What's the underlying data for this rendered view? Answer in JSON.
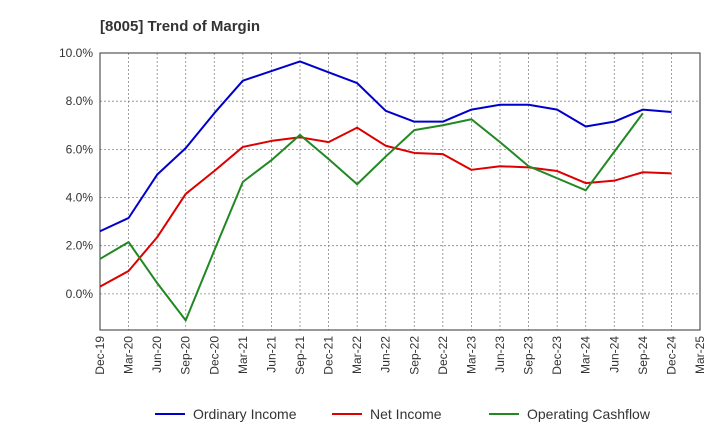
{
  "chart_data": {
    "type": "line",
    "title": "[8005]  Trend of Margin",
    "xlabel": "",
    "ylabel": "",
    "ylim": [
      -1.5,
      10.0
    ],
    "yticks": [
      0,
      2,
      4,
      6,
      8,
      10
    ],
    "ytick_labels": [
      "0.0%",
      "2.0%",
      "4.0%",
      "6.0%",
      "8.0%",
      "10.0%"
    ],
    "categories": [
      "Dec-19",
      "Mar-20",
      "Jun-20",
      "Sep-20",
      "Dec-20",
      "Mar-21",
      "Jun-21",
      "Sep-21",
      "Dec-21",
      "Mar-22",
      "Jun-22",
      "Sep-22",
      "Dec-22",
      "Mar-23",
      "Jun-23",
      "Sep-23",
      "Dec-23",
      "Mar-24",
      "Jun-24",
      "Sep-24",
      "Dec-24",
      "Mar-25"
    ],
    "grid": true,
    "legend_position": "bottom",
    "series": [
      {
        "name": "Ordinary Income",
        "color": "#0000cc",
        "values": [
          2.6,
          3.15,
          4.95,
          6.05,
          7.5,
          8.85,
          9.25,
          9.65,
          9.2,
          8.75,
          7.6,
          7.15,
          7.15,
          7.65,
          7.85,
          7.85,
          7.65,
          6.95,
          7.15,
          7.65,
          7.55,
          null
        ]
      },
      {
        "name": "Net Income",
        "color": "#dd0000",
        "values": [
          0.3,
          0.95,
          2.35,
          4.15,
          5.1,
          6.1,
          6.35,
          6.5,
          6.3,
          6.9,
          6.15,
          5.85,
          5.8,
          5.15,
          5.3,
          5.25,
          5.1,
          4.6,
          4.7,
          5.05,
          5.0,
          null
        ]
      },
      {
        "name": "Operating Cashflow",
        "color": "#228822",
        "values": [
          1.45,
          2.15,
          0.45,
          -1.1,
          1.8,
          4.65,
          5.55,
          6.6,
          5.6,
          4.55,
          5.7,
          6.8,
          7.0,
          7.25,
          6.3,
          5.3,
          4.8,
          4.3,
          5.9,
          7.5,
          null,
          null
        ]
      }
    ]
  }
}
